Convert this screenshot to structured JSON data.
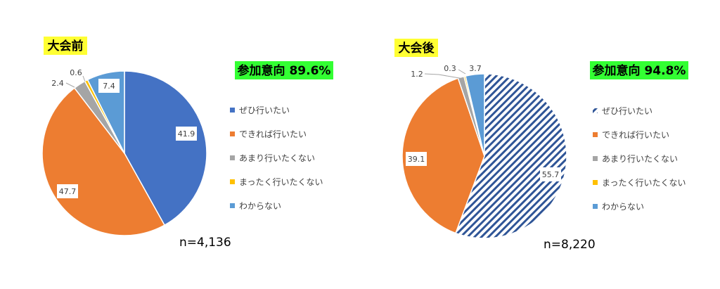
{
  "colors": {
    "title_highlight": "#ffff33",
    "intent_highlight": "#33ff33"
  },
  "chart_data": [
    {
      "type": "pie",
      "title": "大会前",
      "intent_label": "参加意向 89.6%",
      "n_label": "n=4,136",
      "series": [
        {
          "name": "ぜひ行いたい",
          "value": 41.9,
          "label": "41.9",
          "color": "#4472c4",
          "pattern": "solid"
        },
        {
          "name": "できれば行いたい",
          "value": 47.7,
          "label": "47.7",
          "color": "#ed7d31",
          "pattern": "solid"
        },
        {
          "name": "あまり行いたくない",
          "value": 2.4,
          "label": "2.4",
          "color": "#a5a5a5",
          "pattern": "solid"
        },
        {
          "name": "まったく行いたくない",
          "value": 0.6,
          "label": "0.6",
          "color": "#ffc000",
          "pattern": "solid"
        },
        {
          "name": "わからない",
          "value": 7.4,
          "label": "7.4",
          "color": "#5b9bd5",
          "pattern": "solid"
        }
      ],
      "legend_position": "right"
    },
    {
      "type": "pie",
      "title": "大会後",
      "intent_label": "参加意向 94.8%",
      "n_label": "n=8,220",
      "series": [
        {
          "name": "ぜひ行いたい",
          "value": 55.7,
          "label": "55.7",
          "color": "#2f5597",
          "pattern": "hatched"
        },
        {
          "name": "できれば行いたい",
          "value": 39.1,
          "label": "39.1",
          "color": "#ed7d31",
          "pattern": "solid"
        },
        {
          "name": "あまり行いたくない",
          "value": 1.2,
          "label": "1.2",
          "color": "#a5a5a5",
          "pattern": "solid"
        },
        {
          "name": "まったく行いたくない",
          "value": 0.3,
          "label": "0.3",
          "color": "#ffc000",
          "pattern": "solid"
        },
        {
          "name": "わからない",
          "value": 3.7,
          "label": "3.7",
          "color": "#5b9bd5",
          "pattern": "solid"
        }
      ],
      "legend_position": "right"
    }
  ]
}
